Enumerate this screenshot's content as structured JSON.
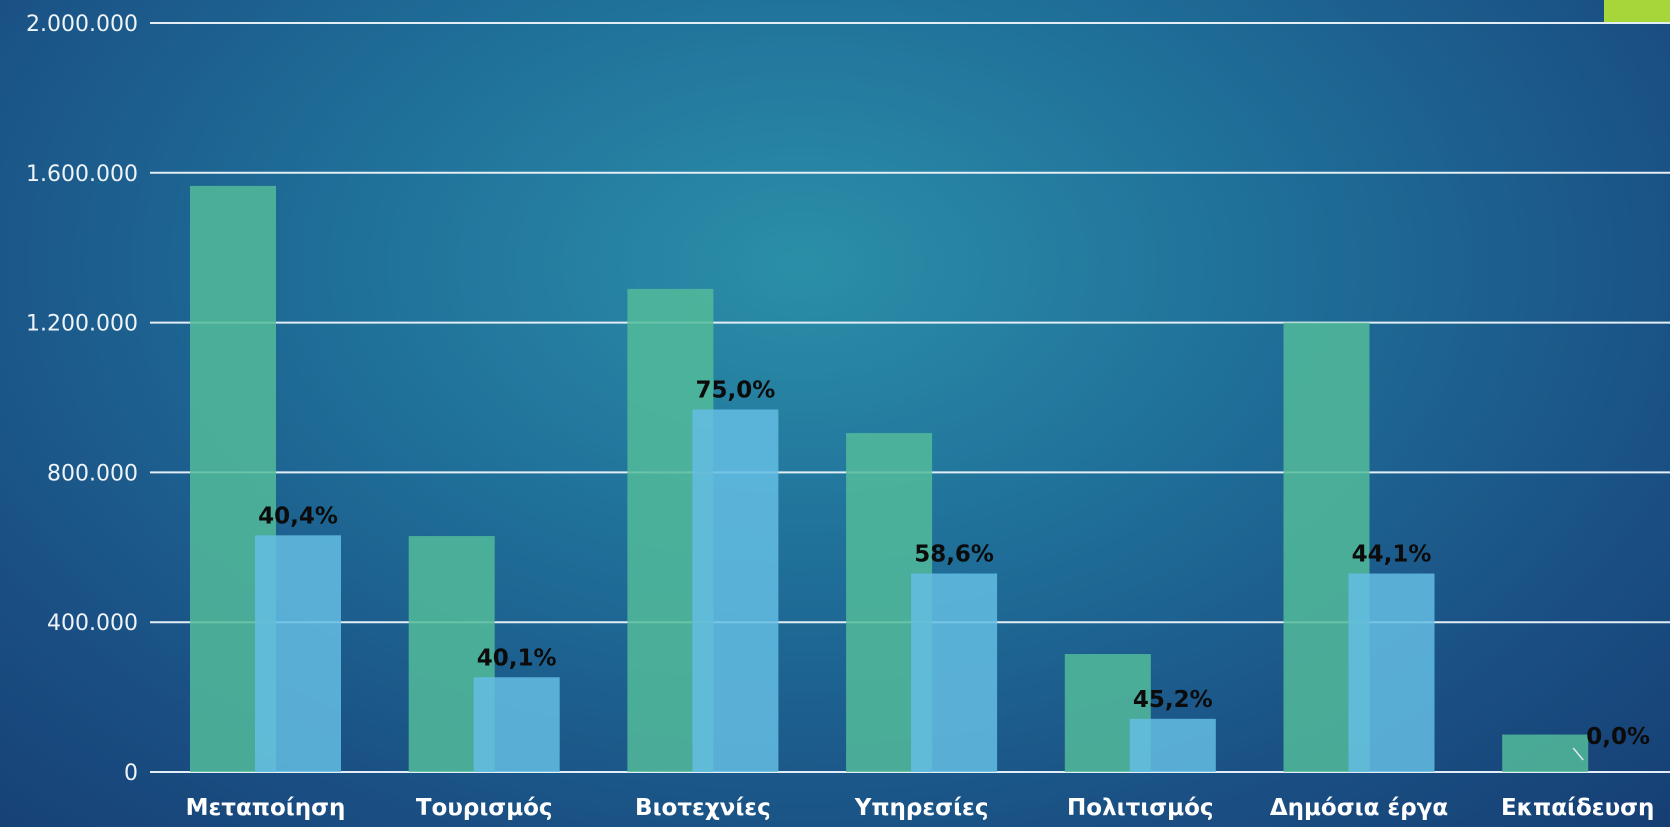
{
  "chart_data": {
    "type": "bar",
    "title": "",
    "xlabel": "",
    "ylabel": "",
    "ylim": [
      0,
      2000000
    ],
    "yticks": [
      0,
      400000,
      800000,
      1200000,
      1600000,
      2000000
    ],
    "ytick_labels": [
      "0",
      "400.000",
      "800.000",
      "1.200.000",
      "1.600.000",
      "2.000.000"
    ],
    "categories": [
      "Μεταποίηση",
      "Τουρισμός",
      "Βιοτεχνίες",
      "Υπηρεσίες",
      "Πολιτισμός",
      "Δημόσια  έργα",
      "Εκπαίδευση"
    ],
    "series": [
      {
        "values": [
          1565000,
          630000,
          1290000,
          905000,
          315000,
          1200000,
          100000
        ],
        "color": "#52bb9a"
      },
      {
        "values": [
          632000,
          253000,
          968000,
          530000,
          142000,
          530000,
          0
        ],
        "color": "#64bde3",
        "data_labels": [
          "40,4%",
          "40,1%",
          "75,0%",
          "58,6%",
          "45,2%",
          "44,1%",
          "0,0%"
        ]
      }
    ],
    "grid": true,
    "legend": "none",
    "colors": {
      "gridline": "#e3edf5",
      "accent_tab": "#a6d63a"
    }
  }
}
